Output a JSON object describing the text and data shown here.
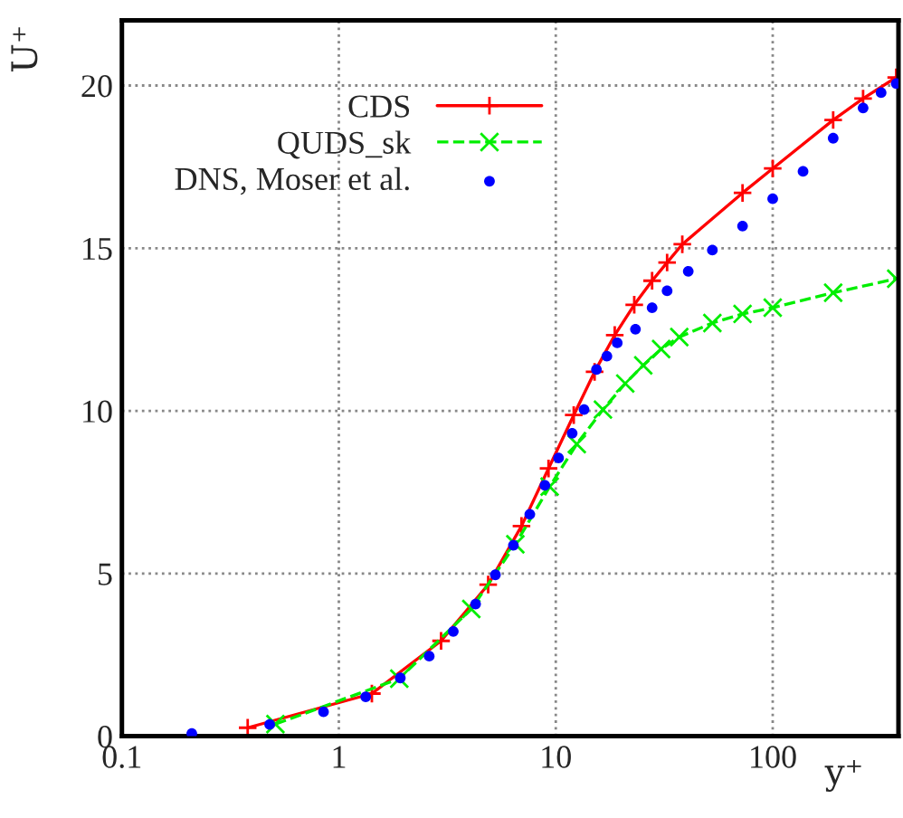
{
  "chart_data": {
    "type": "line",
    "xlabel": "y⁺",
    "ylabel": "U⁺",
    "log": "x",
    "xlim": [
      0.1,
      380
    ],
    "ylim": [
      0,
      22
    ],
    "xticks": [
      0.1,
      1,
      10,
      100
    ],
    "yticks": [
      0,
      5,
      10,
      15,
      20
    ],
    "grid": true,
    "legend": "top left",
    "series": [
      {
        "name": "CDS",
        "color": "#ff0000",
        "marker": "cross",
        "line_style": "solid",
        "x": [
          0.38,
          1.42,
          2.96,
          4.88,
          6.95,
          9.26,
          12.1,
          15.1,
          18.7,
          23.0,
          27.8,
          32.6,
          38.3,
          72.6,
          100,
          190,
          261,
          371
        ],
        "values": [
          0.26,
          1.31,
          2.93,
          4.66,
          6.46,
          8.23,
          9.87,
          11.2,
          12.33,
          13.26,
          14.0,
          14.56,
          15.12,
          16.7,
          17.45,
          18.94,
          19.6,
          20.25
        ]
      },
      {
        "name": "QUDS_sk",
        "color": "#00ee00",
        "marker": "cross",
        "line_style": "dashed",
        "x": [
          0.51,
          1.9,
          4.08,
          6.51,
          9.37,
          12.5,
          16.5,
          20.9,
          25.3,
          30.6,
          37.1,
          52.7,
          72.6,
          100,
          190,
          371
        ],
        "values": [
          0.37,
          1.77,
          3.91,
          5.9,
          7.67,
          8.98,
          10.04,
          10.84,
          11.4,
          11.9,
          12.27,
          12.7,
          12.98,
          13.17,
          13.63,
          14.06
        ]
      },
      {
        "name": "DNS, Moser et al.",
        "color": "#0000ff",
        "type": "scatter",
        "marker": "circle",
        "x": [
          0.21,
          0.48,
          0.85,
          1.33,
          1.92,
          2.61,
          3.37,
          4.27,
          5.27,
          6.38,
          7.59,
          8.91,
          10.3,
          11.9,
          13.5,
          15.4,
          17.2,
          19.2,
          23.3,
          27.8,
          32.6,
          40.8,
          52.7,
          72.6,
          100,
          138,
          190,
          261,
          316,
          371
        ],
        "values": [
          0.08,
          0.36,
          0.75,
          1.21,
          1.79,
          2.46,
          3.22,
          4.06,
          4.96,
          5.87,
          6.82,
          7.71,
          8.55,
          9.31,
          10.04,
          11.27,
          11.68,
          12.09,
          12.51,
          13.17,
          13.69,
          14.29,
          14.94,
          15.68,
          16.52,
          17.36,
          18.38,
          19.31,
          19.78,
          20.06
        ]
      }
    ]
  }
}
